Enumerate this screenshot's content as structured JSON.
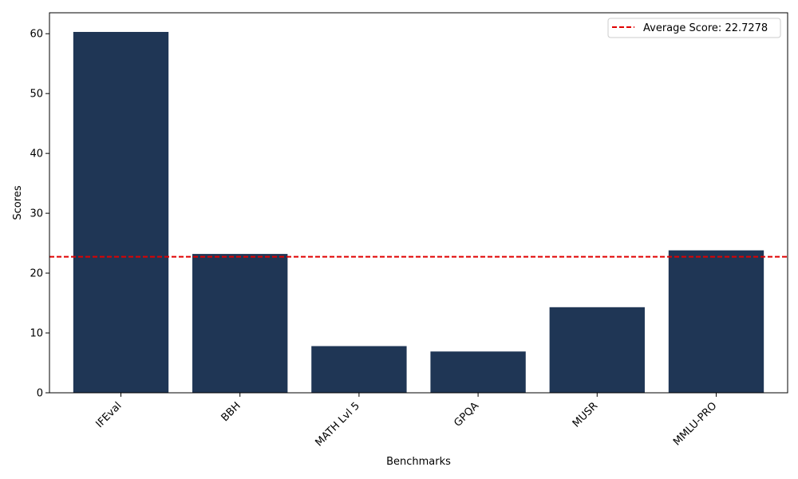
{
  "chart_data": {
    "type": "bar",
    "categories": [
      "IFEval",
      "BBH",
      "MATH Lvl 5",
      "GPQA",
      "MUSR",
      "MMLU-PRO"
    ],
    "values": [
      60.3,
      23.2,
      7.8,
      6.9,
      14.3,
      23.8
    ],
    "xlabel": "Benchmarks",
    "ylabel": "Scores",
    "ylim": [
      0,
      63.5
    ],
    "yticks": [
      0,
      10,
      20,
      30,
      40,
      50,
      60
    ],
    "bar_color": "#1f3655",
    "average": {
      "value": 22.7278,
      "label": "Average Score: 22.7278",
      "color": "#e00000",
      "style": "dashed"
    },
    "legend_position": "top-right",
    "grid": false
  }
}
